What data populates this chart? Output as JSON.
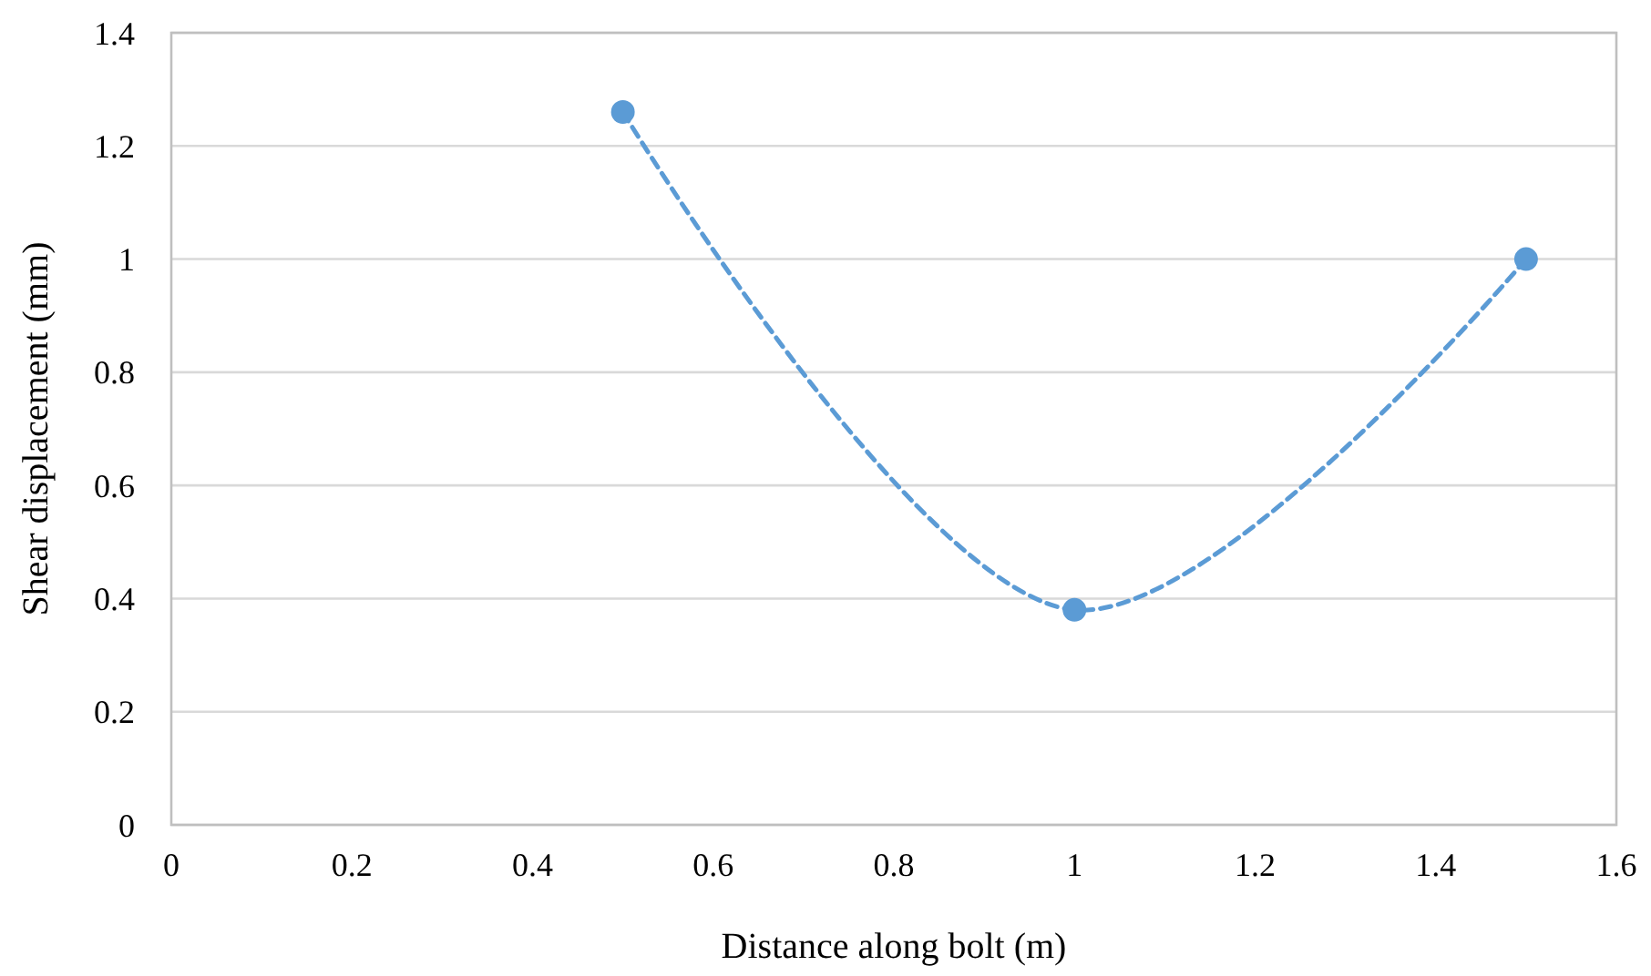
{
  "chart_data": {
    "type": "line",
    "xlabel": "Distance along bolt (m)",
    "ylabel": "Shear displacement (mm)",
    "x": [
      0.5,
      1,
      1.5
    ],
    "series": [
      {
        "color": "#5b9bd5",
        "values": [
          1.26,
          0.38,
          1.0
        ]
      }
    ],
    "xlim": [
      0,
      1.6
    ],
    "xticks": [
      0,
      0.2,
      0.4,
      0.6,
      0.8,
      1,
      1.2,
      1.4,
      1.6
    ],
    "ylim": [
      0,
      1.4
    ],
    "yticks": [
      0,
      0.2,
      0.4,
      0.6,
      0.8,
      1,
      1.2,
      1.4
    ],
    "grid": "y",
    "marker": "circle",
    "line_style": "dashed"
  }
}
